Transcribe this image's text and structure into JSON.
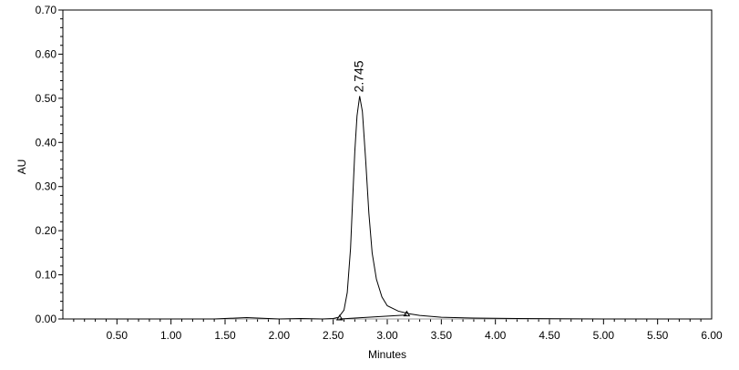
{
  "chart_data": {
    "type": "line",
    "title": "",
    "xlabel": "Minutes",
    "ylabel": "AU",
    "xlim": [
      0.0,
      6.0
    ],
    "ylim": [
      0.0,
      0.7
    ],
    "x_ticks": [
      0.5,
      1.0,
      1.5,
      2.0,
      2.5,
      3.0,
      3.5,
      4.0,
      4.5,
      5.0,
      5.5,
      6.0
    ],
    "x_tick_labels": [
      "0.50",
      "1.00",
      "1.50",
      "2.00",
      "2.50",
      "3.00",
      "3.50",
      "4.00",
      "4.50",
      "5.00",
      "5.50",
      "6.00"
    ],
    "y_ticks": [
      0.0,
      0.1,
      0.2,
      0.3,
      0.4,
      0.5,
      0.6,
      0.7
    ],
    "y_tick_labels": [
      "0.00",
      "0.10",
      "0.20",
      "0.30",
      "0.40",
      "0.50",
      "0.60",
      "0.70"
    ],
    "grid": false,
    "series": [
      {
        "x": [
          0.0,
          0.5,
          1.0,
          1.4,
          1.6,
          1.7,
          1.8,
          2.0,
          2.2,
          2.4,
          2.5,
          2.55,
          2.6,
          2.63,
          2.66,
          2.68,
          2.7,
          2.72,
          2.745,
          2.77,
          2.8,
          2.83,
          2.86,
          2.9,
          2.95,
          3.0,
          3.1,
          3.2,
          3.3,
          3.5,
          3.8,
          4.2,
          5.0,
          6.0
        ],
        "y": [
          0.0,
          0.0,
          0.0,
          0.0,
          0.002,
          0.003,
          0.002,
          0.0,
          0.001,
          0.0,
          0.001,
          0.004,
          0.02,
          0.06,
          0.16,
          0.27,
          0.38,
          0.46,
          0.505,
          0.47,
          0.36,
          0.24,
          0.15,
          0.09,
          0.05,
          0.03,
          0.018,
          0.012,
          0.008,
          0.004,
          0.002,
          0.001,
          0.0,
          0.0
        ]
      }
    ],
    "baseline": {
      "x": [
        2.56,
        3.18
      ],
      "y": [
        0.0,
        0.009
      ]
    },
    "annotations": [
      {
        "text": "2.745",
        "x": 2.745,
        "y": 0.505
      }
    ]
  }
}
